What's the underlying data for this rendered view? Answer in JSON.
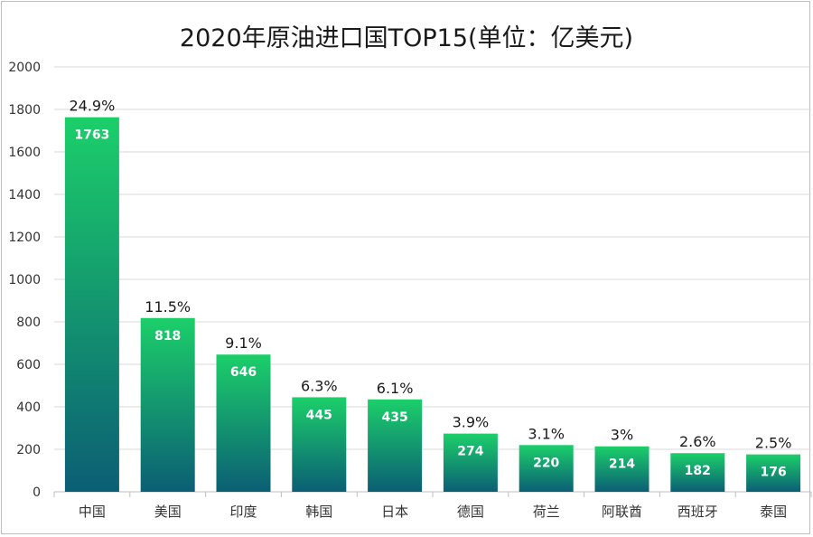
{
  "chart_data": {
    "type": "bar",
    "title": "2020年原油进口国TOP15(单位：亿美元)",
    "xlabel": "",
    "ylabel": "",
    "ylim": [
      0,
      2000
    ],
    "yticks": [
      0,
      200,
      400,
      600,
      800,
      1000,
      1200,
      1400,
      1600,
      1800,
      2000
    ],
    "grid": true,
    "categories": [
      "中国",
      "美国",
      "印度",
      "韩国",
      "日本",
      "德国",
      "荷兰",
      "阿联酋",
      "西班牙",
      "泰国"
    ],
    "values": [
      1763,
      818,
      646,
      445,
      435,
      274,
      220,
      214,
      182,
      176
    ],
    "shares": [
      "24.9%",
      "11.5%",
      "9.1%",
      "6.3%",
      "6.1%",
      "3.9%",
      "3.1%",
      "3%",
      "2.6%",
      "2.5%"
    ],
    "colors": {
      "bar_top": "#1ccf6a",
      "bar_bottom": "#0b5e74",
      "grid": "#d9d9d9",
      "axis": "#bfbfbf"
    }
  }
}
